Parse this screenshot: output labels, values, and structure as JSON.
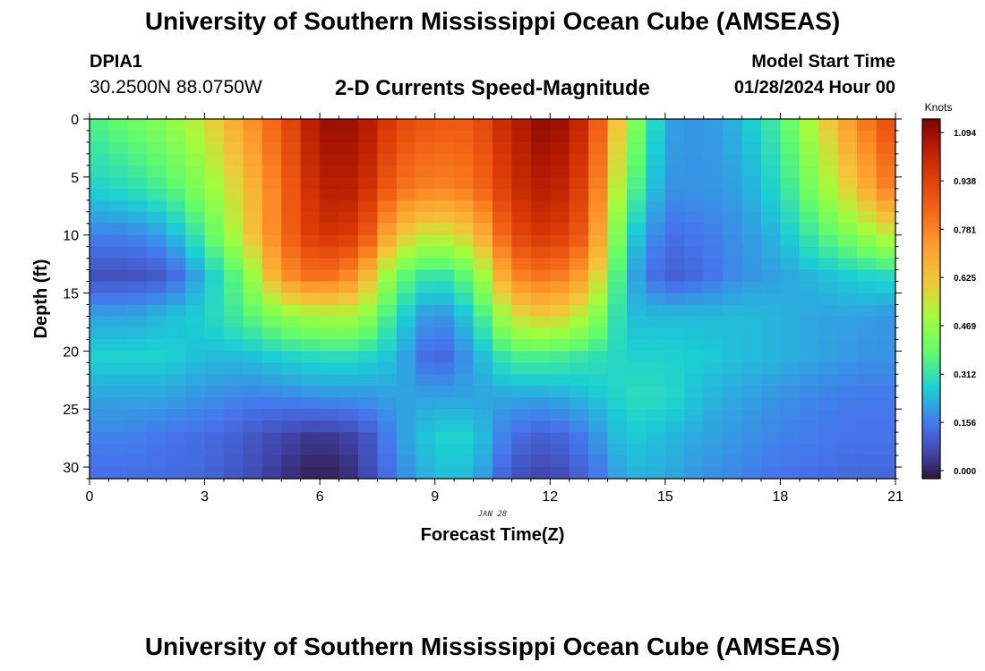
{
  "header": {
    "title": "University of Southern Mississippi Ocean Cube (AMSEAS)",
    "station": "DPIA1",
    "coords": "30.2500N  88.0750W",
    "chart_title": "2-D Currents Speed-Magnitude",
    "start_label": "Model Start Time",
    "start_value": "01/28/2024 Hour 00"
  },
  "footer": {
    "title": "University of Southern Mississippi Ocean Cube (AMSEAS)"
  },
  "chart_data": {
    "type": "heatmap",
    "title": "2-D Currents Speed-Magnitude",
    "xlabel": "Forecast Time(Z)",
    "ylabel": "Depth (ft)",
    "date_label": "JAN 28",
    "xlim": [
      0,
      21
    ],
    "ylim": [
      0,
      31
    ],
    "x_ticks": [
      "0",
      "3",
      "6",
      "9",
      "12",
      "15",
      "18",
      "21"
    ],
    "y_ticks": [
      "0",
      "5",
      "10",
      "15",
      "20",
      "25",
      "30"
    ],
    "colorbar": {
      "unit": "Knots",
      "min": 0.0,
      "max": 1.094,
      "ticks": [
        "1.094",
        "0.938",
        "0.781",
        "0.625",
        "0.469",
        "0.312",
        "0.156",
        "0.000"
      ]
    },
    "depth_levels_ft": [
      0,
      6,
      10,
      13.5,
      17,
      20.5,
      24,
      27.5,
      31
    ],
    "hours": [
      0,
      1,
      2,
      3,
      4,
      5,
      6,
      7,
      8,
      9,
      10,
      11,
      12,
      13,
      14,
      15,
      16,
      17,
      18,
      19,
      20,
      21
    ],
    "speed_knots": [
      [
        0.35,
        0.4,
        0.45,
        0.55,
        0.7,
        0.85,
        1.05,
        1.05,
        0.9,
        0.85,
        0.85,
        1.0,
        1.08,
        0.95,
        0.5,
        0.22,
        0.2,
        0.25,
        0.35,
        0.55,
        0.75,
        0.9
      ],
      [
        0.28,
        0.3,
        0.35,
        0.45,
        0.6,
        0.8,
        1.0,
        1.0,
        0.8,
        0.75,
        0.78,
        0.95,
        1.02,
        0.88,
        0.4,
        0.2,
        0.2,
        0.22,
        0.3,
        0.45,
        0.62,
        0.8
      ],
      [
        0.18,
        0.18,
        0.22,
        0.35,
        0.55,
        0.8,
        0.95,
        0.92,
        0.62,
        0.52,
        0.6,
        0.88,
        0.95,
        0.82,
        0.3,
        0.15,
        0.17,
        0.2,
        0.25,
        0.35,
        0.45,
        0.55
      ],
      [
        0.1,
        0.1,
        0.12,
        0.25,
        0.4,
        0.72,
        0.82,
        0.72,
        0.4,
        0.3,
        0.4,
        0.75,
        0.8,
        0.68,
        0.25,
        0.12,
        0.15,
        0.2,
        0.22,
        0.25,
        0.28,
        0.3
      ],
      [
        0.22,
        0.22,
        0.25,
        0.28,
        0.35,
        0.45,
        0.5,
        0.5,
        0.3,
        0.18,
        0.28,
        0.55,
        0.6,
        0.5,
        0.25,
        0.25,
        0.25,
        0.25,
        0.24,
        0.22,
        0.22,
        0.2
      ],
      [
        0.28,
        0.28,
        0.28,
        0.25,
        0.25,
        0.28,
        0.3,
        0.3,
        0.25,
        0.12,
        0.22,
        0.35,
        0.35,
        0.32,
        0.28,
        0.28,
        0.27,
        0.25,
        0.24,
        0.22,
        0.2,
        0.2
      ],
      [
        0.22,
        0.22,
        0.22,
        0.2,
        0.18,
        0.18,
        0.2,
        0.2,
        0.22,
        0.22,
        0.22,
        0.22,
        0.22,
        0.25,
        0.3,
        0.3,
        0.25,
        0.22,
        0.2,
        0.18,
        0.17,
        0.17
      ],
      [
        0.18,
        0.18,
        0.16,
        0.15,
        0.12,
        0.08,
        0.05,
        0.08,
        0.2,
        0.28,
        0.28,
        0.15,
        0.12,
        0.18,
        0.27,
        0.25,
        0.22,
        0.2,
        0.18,
        0.17,
        0.16,
        0.16
      ],
      [
        0.15,
        0.15,
        0.15,
        0.14,
        0.1,
        0.05,
        0.01,
        0.05,
        0.18,
        0.25,
        0.25,
        0.1,
        0.07,
        0.14,
        0.24,
        0.23,
        0.2,
        0.18,
        0.16,
        0.15,
        0.14,
        0.14
      ]
    ]
  }
}
